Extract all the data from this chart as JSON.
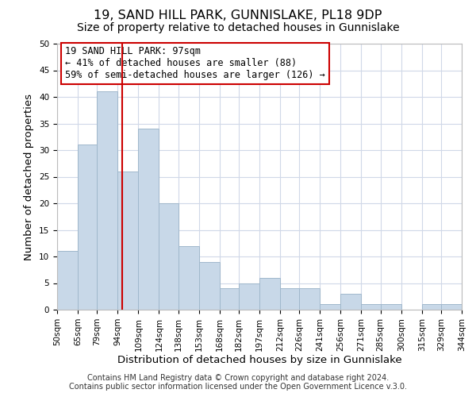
{
  "title": "19, SAND HILL PARK, GUNNISLAKE, PL18 9DP",
  "subtitle": "Size of property relative to detached houses in Gunnislake",
  "xlabel": "Distribution of detached houses by size in Gunnislake",
  "ylabel": "Number of detached properties",
  "footer_line1": "Contains HM Land Registry data © Crown copyright and database right 2024.",
  "footer_line2": "Contains public sector information licensed under the Open Government Licence v.3.0.",
  "annotation_line1": "19 SAND HILL PARK: 97sqm",
  "annotation_line2": "← 41% of detached houses are smaller (88)",
  "annotation_line3": "59% of semi-detached houses are larger (126) →",
  "bar_edges": [
    50,
    65,
    79,
    94,
    109,
    124,
    138,
    153,
    168,
    182,
    197,
    212,
    226,
    241,
    256,
    271,
    285,
    300,
    315,
    329,
    344
  ],
  "bar_heights": [
    11,
    31,
    41,
    26,
    34,
    20,
    12,
    9,
    4,
    5,
    6,
    4,
    4,
    1,
    3,
    1,
    1,
    0,
    1,
    1
  ],
  "bar_color": "#c8d8e8",
  "bar_edgecolor": "#a0b8cc",
  "vline_x": 97,
  "vline_color": "#cc0000",
  "ylim": [
    0,
    50
  ],
  "yticks": [
    0,
    5,
    10,
    15,
    20,
    25,
    30,
    35,
    40,
    45,
    50
  ],
  "tick_labels": [
    "50sqm",
    "65sqm",
    "79sqm",
    "94sqm",
    "109sqm",
    "124sqm",
    "138sqm",
    "153sqm",
    "168sqm",
    "182sqm",
    "197sqm",
    "212sqm",
    "226sqm",
    "241sqm",
    "256sqm",
    "271sqm",
    "285sqm",
    "300sqm",
    "315sqm",
    "329sqm",
    "344sqm"
  ],
  "annotation_box_edgecolor": "#cc0000",
  "annotation_box_facecolor": "#ffffff",
  "background_color": "#ffffff",
  "grid_color": "#d0d8e8",
  "title_fontsize": 11.5,
  "subtitle_fontsize": 10,
  "axis_label_fontsize": 9.5,
  "tick_fontsize": 7.5,
  "annotation_fontsize": 8.5,
  "footer_fontsize": 7
}
